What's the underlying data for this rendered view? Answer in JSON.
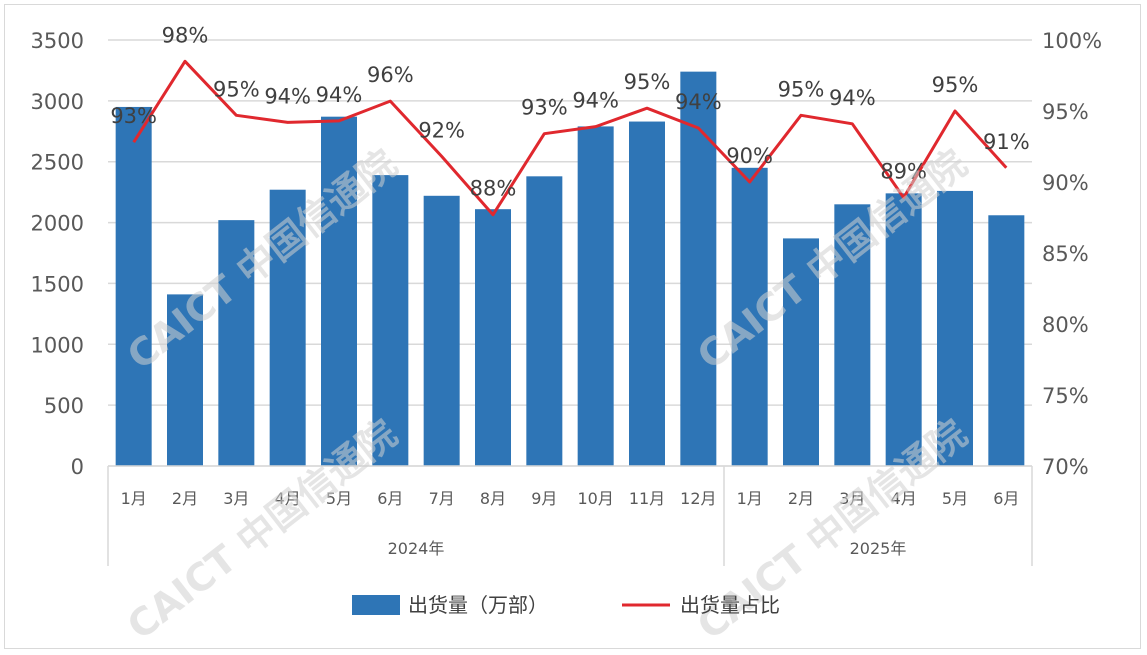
{
  "chart_data": {
    "type": "bar",
    "groups": [
      {
        "label": "2024年",
        "categories": [
          "1月",
          "2月",
          "3月",
          "4月",
          "5月",
          "6月",
          "7月",
          "8月",
          "9月",
          "10月",
          "11月",
          "12月"
        ]
      },
      {
        "label": "2025年",
        "categories": [
          "1月",
          "2月",
          "3月",
          "4月",
          "5月",
          "6月"
        ]
      }
    ],
    "categories": [
      "1月",
      "2月",
      "3月",
      "4月",
      "5月",
      "6月",
      "7月",
      "8月",
      "9月",
      "10月",
      "11月",
      "12月",
      "1月",
      "2月",
      "3月",
      "4月",
      "5月",
      "6月"
    ],
    "series": [
      {
        "name": "出货量（万部）",
        "kind": "bar",
        "axis": "left",
        "color": "#2e75b6",
        "values": [
          2950,
          1410,
          2020,
          2270,
          2870,
          2390,
          2220,
          2110,
          2380,
          2790,
          2830,
          3240,
          2450,
          1870,
          2150,
          2240,
          2260,
          2060
        ]
      },
      {
        "name": "出货量占比",
        "kind": "line",
        "axis": "right",
        "color": "#e0282e",
        "values": [
          0.928,
          0.985,
          0.947,
          0.942,
          0.943,
          0.957,
          0.918,
          0.877,
          0.934,
          0.939,
          0.952,
          0.938,
          0.9,
          0.947,
          0.941,
          0.889,
          0.95,
          0.91
        ],
        "labels": [
          "93%",
          "98%",
          "95%",
          "94%",
          "94%",
          "96%",
          "92%",
          "88%",
          "93%",
          "94%",
          "95%",
          "94%",
          "90%",
          "95%",
          "94%",
          "89%",
          "95%",
          "91%"
        ]
      }
    ],
    "y_left": {
      "min": 0,
      "max": 3500,
      "ticks": [
        "0",
        "500",
        "1000",
        "1500",
        "2000",
        "2500",
        "3000",
        "3500"
      ]
    },
    "y_right": {
      "min": 0.7,
      "max": 1.0,
      "ticks": [
        "70%",
        "75%",
        "80%",
        "85%",
        "90%",
        "95%",
        "100%"
      ]
    },
    "grid": true,
    "legend_position": "bottom",
    "watermark": "CAICT 中国信通院"
  }
}
